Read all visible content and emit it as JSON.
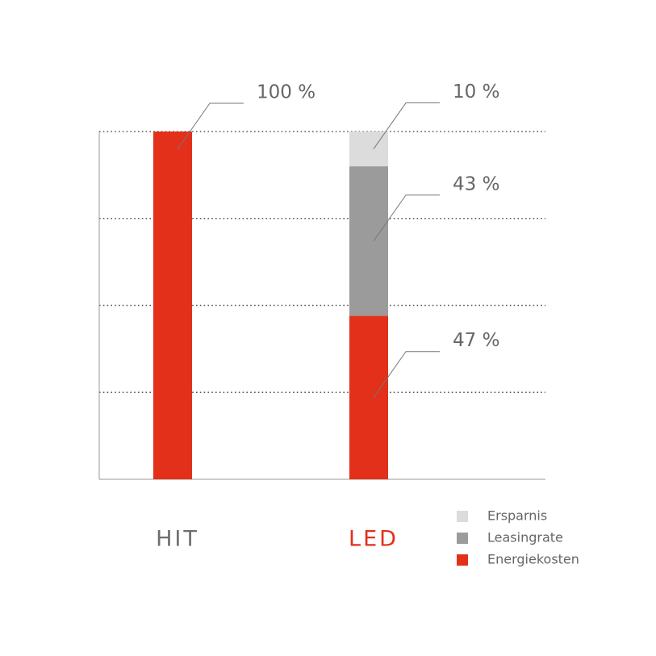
{
  "chart_data": {
    "type": "stacked_bar",
    "categories": [
      "HIT",
      "LED"
    ],
    "category_colors": [
      "#6e6e6e",
      "#e3301a"
    ],
    "series": [
      {
        "name": "Energiekosten",
        "color": "#e3301a",
        "values": [
          100,
          47
        ],
        "value_labels": [
          "100 %",
          "47 %"
        ]
      },
      {
        "name": "Leasingrate",
        "color": "#9b9b9b",
        "values": [
          null,
          43
        ],
        "value_labels": [
          null,
          "43 %"
        ]
      },
      {
        "name": "Ersparnis",
        "color": "#dcdcdc",
        "values": [
          null,
          10
        ],
        "value_labels": [
          null,
          "10 %"
        ]
      }
    ],
    "ylim": [
      0,
      100
    ],
    "yticks": [
      0,
      25,
      50,
      75,
      100
    ],
    "tick_labels": false,
    "grid": true,
    "legend": "bottom-right"
  }
}
